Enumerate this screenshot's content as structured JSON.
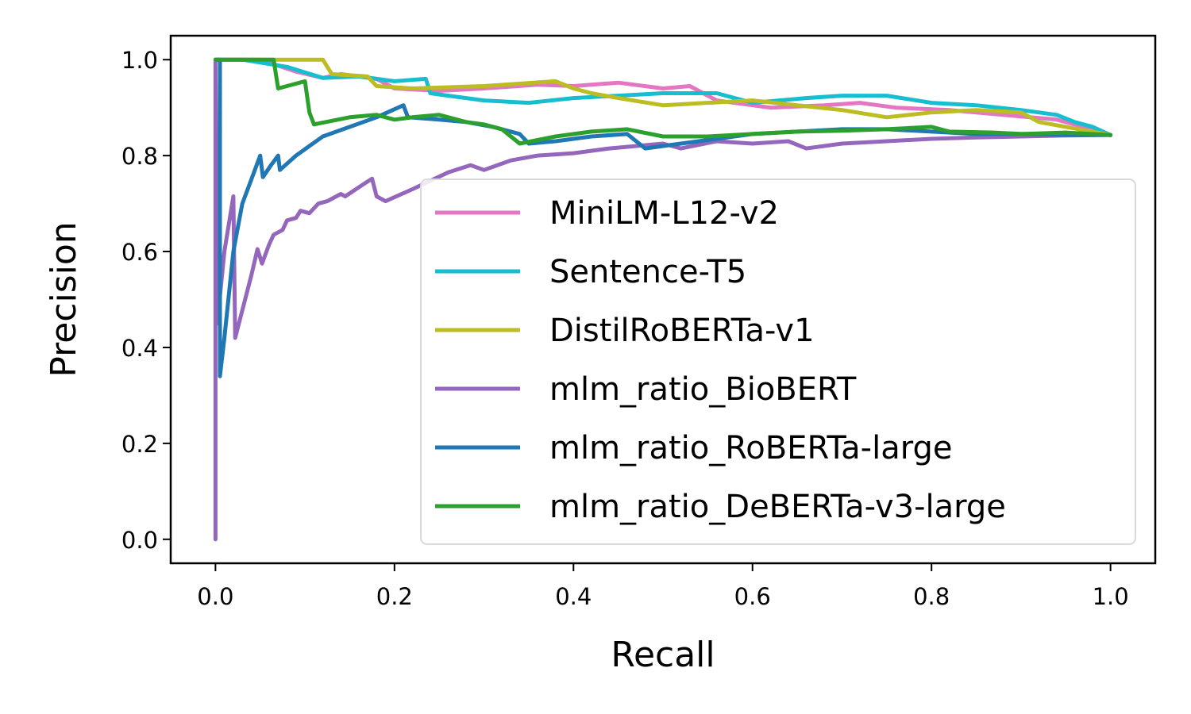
{
  "chart_data": {
    "type": "line",
    "xlabel": "Recall",
    "ylabel": "Precision",
    "xlim": [
      -0.05,
      1.05
    ],
    "ylim": [
      -0.05,
      1.05
    ],
    "xticks": [
      "0.0",
      "0.2",
      "0.4",
      "0.6",
      "0.8",
      "1.0"
    ],
    "yticks": [
      "0.0",
      "0.2",
      "0.4",
      "0.6",
      "0.8",
      "1.0"
    ],
    "grid": false,
    "legend_position": "lower-right",
    "series": [
      {
        "name": "MiniLM-L12-v2",
        "color": "#e377c2",
        "points": [
          [
            0.0,
            1.0
          ],
          [
            0.05,
            1.0
          ],
          [
            0.09,
            0.975
          ],
          [
            0.12,
            0.962
          ],
          [
            0.14,
            0.97
          ],
          [
            0.18,
            0.96
          ],
          [
            0.2,
            0.94
          ],
          [
            0.25,
            0.935
          ],
          [
            0.3,
            0.94
          ],
          [
            0.36,
            0.948
          ],
          [
            0.4,
            0.945
          ],
          [
            0.45,
            0.952
          ],
          [
            0.5,
            0.94
          ],
          [
            0.53,
            0.945
          ],
          [
            0.56,
            0.915
          ],
          [
            0.62,
            0.9
          ],
          [
            0.68,
            0.905
          ],
          [
            0.72,
            0.91
          ],
          [
            0.76,
            0.9
          ],
          [
            0.82,
            0.895
          ],
          [
            0.88,
            0.885
          ],
          [
            0.94,
            0.875
          ],
          [
            0.98,
            0.855
          ],
          [
            1.0,
            0.842
          ]
        ]
      },
      {
        "name": "Sentence-T5",
        "color": "#17becf",
        "points": [
          [
            0.0,
            1.0
          ],
          [
            0.03,
            1.0
          ],
          [
            0.08,
            0.985
          ],
          [
            0.12,
            0.962
          ],
          [
            0.16,
            0.965
          ],
          [
            0.2,
            0.955
          ],
          [
            0.235,
            0.96
          ],
          [
            0.24,
            0.93
          ],
          [
            0.26,
            0.925
          ],
          [
            0.3,
            0.915
          ],
          [
            0.35,
            0.91
          ],
          [
            0.4,
            0.92
          ],
          [
            0.45,
            0.925
          ],
          [
            0.5,
            0.93
          ],
          [
            0.56,
            0.93
          ],
          [
            0.6,
            0.91
          ],
          [
            0.66,
            0.92
          ],
          [
            0.7,
            0.925
          ],
          [
            0.75,
            0.925
          ],
          [
            0.8,
            0.91
          ],
          [
            0.85,
            0.905
          ],
          [
            0.9,
            0.895
          ],
          [
            0.94,
            0.885
          ],
          [
            0.96,
            0.87
          ],
          [
            0.98,
            0.86
          ],
          [
            1.0,
            0.843
          ]
        ]
      },
      {
        "name": "DistilRoBERTa-v1",
        "color": "#bcbd22",
        "points": [
          [
            0.0,
            1.0
          ],
          [
            0.12,
            1.0
          ],
          [
            0.13,
            0.97
          ],
          [
            0.17,
            0.965
          ],
          [
            0.18,
            0.945
          ],
          [
            0.22,
            0.94
          ],
          [
            0.3,
            0.945
          ],
          [
            0.38,
            0.955
          ],
          [
            0.4,
            0.94
          ],
          [
            0.42,
            0.93
          ],
          [
            0.45,
            0.92
          ],
          [
            0.5,
            0.905
          ],
          [
            0.55,
            0.91
          ],
          [
            0.6,
            0.915
          ],
          [
            0.65,
            0.905
          ],
          [
            0.7,
            0.895
          ],
          [
            0.75,
            0.88
          ],
          [
            0.8,
            0.89
          ],
          [
            0.85,
            0.895
          ],
          [
            0.9,
            0.89
          ],
          [
            0.92,
            0.87
          ],
          [
            0.95,
            0.86
          ],
          [
            1.0,
            0.843
          ]
        ]
      },
      {
        "name": "mlm_ratio_BioBERT",
        "color": "#9467bd",
        "points": [
          [
            0.0,
            0.0
          ],
          [
            0.0,
            1.0
          ],
          [
            0.002,
            0.45
          ],
          [
            0.01,
            0.6
          ],
          [
            0.02,
            0.715
          ],
          [
            0.022,
            0.42
          ],
          [
            0.04,
            0.55
          ],
          [
            0.047,
            0.605
          ],
          [
            0.052,
            0.575
          ],
          [
            0.06,
            0.615
          ],
          [
            0.065,
            0.635
          ],
          [
            0.075,
            0.645
          ],
          [
            0.08,
            0.665
          ],
          [
            0.09,
            0.67
          ],
          [
            0.095,
            0.685
          ],
          [
            0.105,
            0.68
          ],
          [
            0.115,
            0.7
          ],
          [
            0.125,
            0.705
          ],
          [
            0.14,
            0.72
          ],
          [
            0.145,
            0.715
          ],
          [
            0.165,
            0.74
          ],
          [
            0.175,
            0.752
          ],
          [
            0.18,
            0.715
          ],
          [
            0.19,
            0.705
          ],
          [
            0.22,
            0.73
          ],
          [
            0.26,
            0.765
          ],
          [
            0.285,
            0.78
          ],
          [
            0.3,
            0.77
          ],
          [
            0.33,
            0.79
          ],
          [
            0.36,
            0.8
          ],
          [
            0.4,
            0.805
          ],
          [
            0.44,
            0.815
          ],
          [
            0.5,
            0.825
          ],
          [
            0.52,
            0.815
          ],
          [
            0.56,
            0.83
          ],
          [
            0.6,
            0.825
          ],
          [
            0.64,
            0.83
          ],
          [
            0.66,
            0.815
          ],
          [
            0.7,
            0.825
          ],
          [
            0.75,
            0.83
          ],
          [
            0.8,
            0.835
          ],
          [
            0.85,
            0.838
          ],
          [
            0.9,
            0.84
          ],
          [
            0.95,
            0.842
          ],
          [
            1.0,
            0.843
          ]
        ]
      },
      {
        "name": "mlm_ratio_RoBERTa-large",
        "color": "#1f77b4",
        "points": [
          [
            0.0,
            1.0
          ],
          [
            0.005,
            1.0
          ],
          [
            0.005,
            0.34
          ],
          [
            0.01,
            0.42
          ],
          [
            0.02,
            0.6
          ],
          [
            0.03,
            0.7
          ],
          [
            0.04,
            0.75
          ],
          [
            0.05,
            0.8
          ],
          [
            0.053,
            0.755
          ],
          [
            0.062,
            0.78
          ],
          [
            0.07,
            0.8
          ],
          [
            0.072,
            0.77
          ],
          [
            0.09,
            0.8
          ],
          [
            0.12,
            0.84
          ],
          [
            0.15,
            0.86
          ],
          [
            0.18,
            0.88
          ],
          [
            0.21,
            0.905
          ],
          [
            0.215,
            0.88
          ],
          [
            0.25,
            0.875
          ],
          [
            0.28,
            0.87
          ],
          [
            0.31,
            0.86
          ],
          [
            0.34,
            0.845
          ],
          [
            0.35,
            0.825
          ],
          [
            0.38,
            0.83
          ],
          [
            0.42,
            0.84
          ],
          [
            0.46,
            0.845
          ],
          [
            0.48,
            0.815
          ],
          [
            0.52,
            0.825
          ],
          [
            0.56,
            0.835
          ],
          [
            0.6,
            0.845
          ],
          [
            0.65,
            0.85
          ],
          [
            0.7,
            0.855
          ],
          [
            0.75,
            0.855
          ],
          [
            0.8,
            0.85
          ],
          [
            0.85,
            0.845
          ],
          [
            0.9,
            0.845
          ],
          [
            0.95,
            0.843
          ],
          [
            1.0,
            0.843
          ]
        ]
      },
      {
        "name": "mlm_ratio_DeBERTa-v3-large",
        "color": "#2ca02c",
        "points": [
          [
            0.0,
            1.0
          ],
          [
            0.065,
            1.0
          ],
          [
            0.07,
            0.94
          ],
          [
            0.1,
            0.955
          ],
          [
            0.105,
            0.89
          ],
          [
            0.11,
            0.865
          ],
          [
            0.15,
            0.88
          ],
          [
            0.18,
            0.885
          ],
          [
            0.2,
            0.875
          ],
          [
            0.22,
            0.88
          ],
          [
            0.25,
            0.885
          ],
          [
            0.28,
            0.87
          ],
          [
            0.3,
            0.865
          ],
          [
            0.32,
            0.855
          ],
          [
            0.33,
            0.84
          ],
          [
            0.34,
            0.825
          ],
          [
            0.38,
            0.84
          ],
          [
            0.42,
            0.85
          ],
          [
            0.46,
            0.855
          ],
          [
            0.5,
            0.84
          ],
          [
            0.55,
            0.84
          ],
          [
            0.6,
            0.845
          ],
          [
            0.65,
            0.85
          ],
          [
            0.7,
            0.852
          ],
          [
            0.75,
            0.855
          ],
          [
            0.8,
            0.86
          ],
          [
            0.82,
            0.85
          ],
          [
            0.87,
            0.848
          ],
          [
            0.9,
            0.845
          ],
          [
            0.95,
            0.848
          ],
          [
            1.0,
            0.843
          ]
        ]
      }
    ]
  }
}
